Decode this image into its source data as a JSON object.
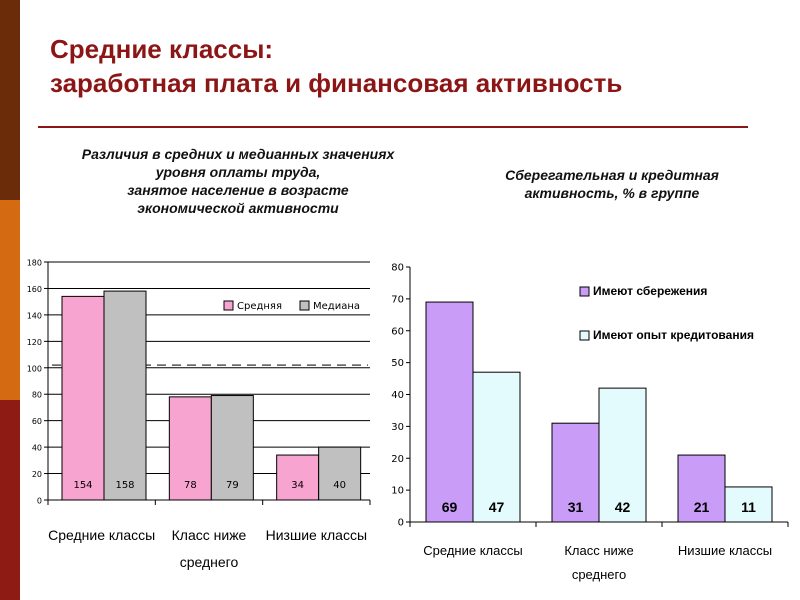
{
  "slide": {
    "title_line1": "Средние классы:",
    "title_line2": "заработная плата и финансовая активность",
    "left_subtitle": [
      "Различия в средних и медианных значениях",
      "уровня оплаты труда,",
      "занятое население в возрасте",
      "экономической активности"
    ],
    "right_subtitle": [
      "Сберегательная и кредитная",
      "активность, % в группе"
    ]
  },
  "colors": {
    "title": "#8c1515",
    "pink": "#f8a4d0",
    "grey": "#c0c0c0",
    "violet": "#c99cf7",
    "light_cyan": "#e4fbfd",
    "dashed_line": "#555555"
  },
  "chart_data": [
    {
      "type": "bar",
      "title": "",
      "categories": [
        [
          "Средние классы"
        ],
        [
          "Класс ниже",
          "среднего"
        ],
        [
          "Низшие классы"
        ]
      ],
      "series": [
        {
          "name": "Средняя",
          "values": [
            154,
            78,
            34
          ],
          "color": "#f8a4d0"
        },
        {
          "name": "Медиана",
          "values": [
            158,
            79,
            40
          ],
          "color": "#c0c0c0"
        }
      ],
      "ylim": [
        0,
        180
      ],
      "yticks": [
        0,
        20,
        40,
        60,
        80,
        100,
        120,
        140,
        160,
        180
      ],
      "reference_line": 102,
      "grid": true,
      "legend": "top-right",
      "data_labels": true
    },
    {
      "type": "bar",
      "title": "",
      "categories": [
        [
          "Средние классы"
        ],
        [
          "Класс ниже",
          "среднего"
        ],
        [
          "Низшие классы"
        ]
      ],
      "series": [
        {
          "name": "Имеют сбережения",
          "values": [
            69,
            31,
            21
          ],
          "color": "#c99cf7"
        },
        {
          "name": "Имеют опыт кредитования",
          "values": [
            47,
            42,
            11
          ],
          "color": "#e4fbfd"
        }
      ],
      "ylim": [
        0,
        80
      ],
      "yticks": [
        0,
        10,
        20,
        30,
        40,
        50,
        60,
        70,
        80
      ],
      "grid": false,
      "legend": "top-right",
      "data_labels": true
    }
  ]
}
